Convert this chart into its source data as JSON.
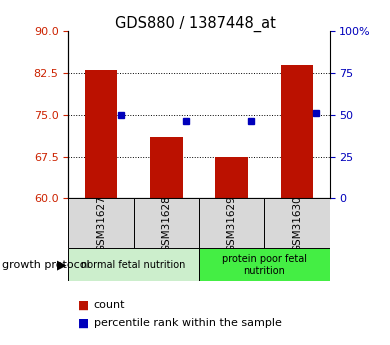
{
  "title": "GDS880 / 1387448_at",
  "samples": [
    "GSM31627",
    "GSM31628",
    "GSM31629",
    "GSM31630"
  ],
  "count_values": [
    83.0,
    71.0,
    67.5,
    84.0
  ],
  "percentile_values": [
    50.0,
    46.0,
    46.0,
    51.0
  ],
  "ylim_left": [
    60,
    90
  ],
  "ylim_right": [
    0,
    100
  ],
  "yticks_left": [
    60,
    67.5,
    75,
    82.5,
    90
  ],
  "yticks_right": [
    0,
    25,
    50,
    75,
    100
  ],
  "bar_color": "#bb1100",
  "dot_color": "#0000bb",
  "groups": [
    {
      "label": "normal fetal nutrition",
      "samples": [
        0,
        1
      ],
      "color": "#cceecc"
    },
    {
      "label": "protein poor fetal\nnutrition",
      "samples": [
        2,
        3
      ],
      "color": "#44ee44"
    }
  ],
  "group_label": "growth protocol",
  "legend_count": "count",
  "legend_percentile": "percentile rank within the sample",
  "bar_width": 0.5,
  "tick_label_color_left": "#cc2200",
  "tick_label_color_right": "#0000cc",
  "sample_box_color": "#d8d8d8"
}
